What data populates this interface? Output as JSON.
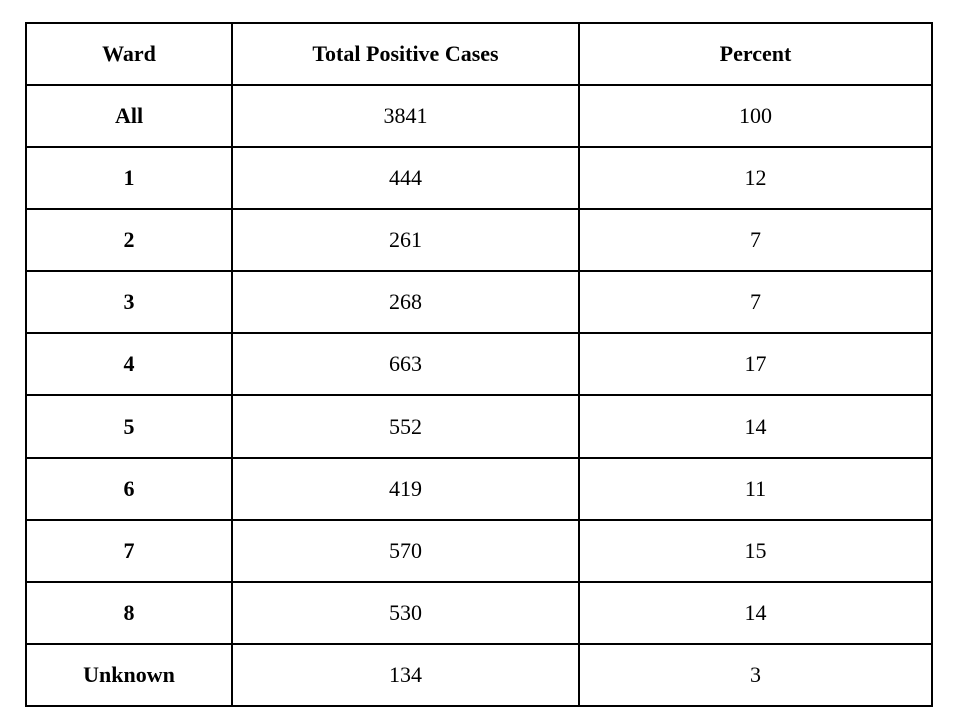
{
  "colors": {
    "background": "#ffffff",
    "border": "#000000",
    "text": "#000000"
  },
  "table": {
    "columns": [
      "Ward",
      "Total Positive Cases",
      "Percent"
    ],
    "rows": [
      {
        "ward": "All",
        "cases": "3841",
        "percent": "100"
      },
      {
        "ward": "1",
        "cases": "444",
        "percent": "12"
      },
      {
        "ward": "2",
        "cases": "261",
        "percent": "7"
      },
      {
        "ward": "3",
        "cases": "268",
        "percent": "7"
      },
      {
        "ward": "4",
        "cases": "663",
        "percent": "17"
      },
      {
        "ward": "5",
        "cases": "552",
        "percent": "14"
      },
      {
        "ward": "6",
        "cases": "419",
        "percent": "11"
      },
      {
        "ward": "7",
        "cases": "570",
        "percent": "15"
      },
      {
        "ward": "8",
        "cases": "530",
        "percent": "14"
      },
      {
        "ward": "Unknown",
        "cases": "134",
        "percent": "3"
      }
    ]
  },
  "chart_data": {
    "type": "table",
    "title": "",
    "columns": [
      "Ward",
      "Total Positive Cases",
      "Percent"
    ],
    "categories": [
      "All",
      "1",
      "2",
      "3",
      "4",
      "5",
      "6",
      "7",
      "8",
      "Unknown"
    ],
    "series": [
      {
        "name": "Total Positive Cases",
        "values": [
          3841,
          444,
          261,
          268,
          663,
          552,
          419,
          570,
          530,
          134
        ]
      },
      {
        "name": "Percent",
        "values": [
          100,
          12,
          7,
          7,
          17,
          14,
          11,
          15,
          14,
          3
        ]
      }
    ],
    "layout": {
      "grid": true,
      "borders": "all",
      "header_bold": true,
      "first_column_bold": true
    }
  }
}
